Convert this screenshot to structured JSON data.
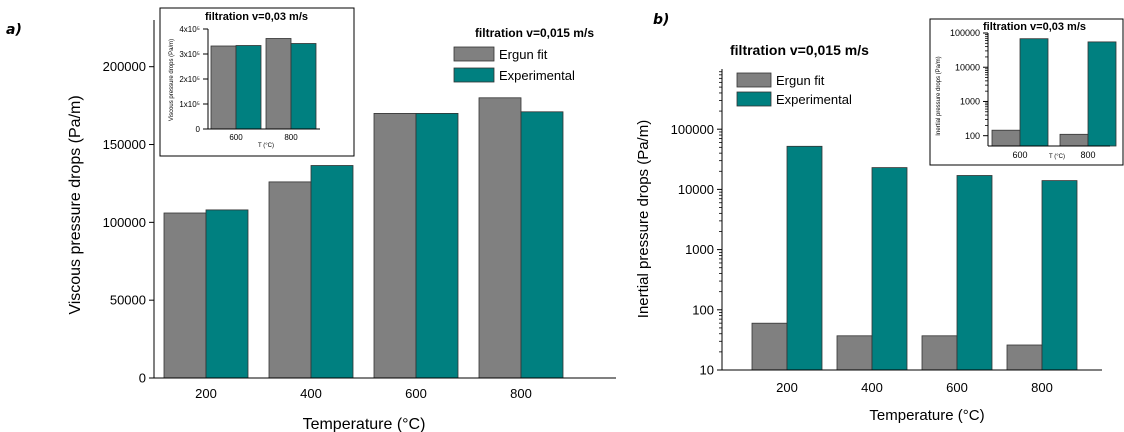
{
  "panel_labels": {
    "a": "a)",
    "b": "b)"
  },
  "colors": {
    "ergun": "#808080",
    "experimental": "#008080",
    "axis": "#000000"
  },
  "chart_data": [
    {
      "id": "main-a",
      "type": "bar",
      "scale": "linear",
      "title": "filtration v=0,015 m/s",
      "xlabel": "Temperature (°C)",
      "ylabel": "Viscous pressure drops (Pa/m)",
      "categories": [
        "200",
        "400",
        "600",
        "800"
      ],
      "ylim": [
        0,
        230000
      ],
      "yticks": [
        0,
        50000,
        100000,
        150000,
        200000
      ],
      "ytick_labels": [
        "0",
        "50000",
        "100000",
        "150000",
        "200000"
      ],
      "legend_position": "top-right",
      "series": [
        {
          "name": "Ergun fit",
          "values": [
            106000,
            126000,
            170000,
            180000
          ]
        },
        {
          "name": "Experimental",
          "values": [
            108000,
            136500,
            170000,
            171000
          ]
        }
      ]
    },
    {
      "id": "inset-a",
      "type": "bar",
      "scale": "linear",
      "title": "filtration v=0,03 m/s",
      "xlabel": "T (°C)",
      "ylabel": "Viscous pressure drops (Pa/m)",
      "categories": [
        "600",
        "800"
      ],
      "ylim": [
        0,
        400000
      ],
      "yticks": [
        0,
        100000,
        200000,
        300000,
        400000
      ],
      "ytick_labels": [
        "0",
        "1x10⁵",
        "2x10⁵",
        "3x10⁵",
        "4x10⁵"
      ],
      "series": [
        {
          "name": "Ergun fit",
          "values": [
            332000,
            362000
          ]
        },
        {
          "name": "Experimental",
          "values": [
            334000,
            342000
          ]
        }
      ]
    },
    {
      "id": "main-b",
      "type": "bar",
      "scale": "log",
      "title": "filtration v=0,015 m/s",
      "xlabel": "Temperature (°C)",
      "ylabel": "Inertial pressure drops (Pa/m)",
      "categories": [
        "200",
        "400",
        "600",
        "800"
      ],
      "ylim": [
        10,
        1000000
      ],
      "yticks": [
        10,
        100,
        1000,
        10000,
        100000
      ],
      "ytick_labels": [
        "10",
        "100",
        "1000",
        "10000",
        "100000"
      ],
      "legend_position": "top-left",
      "series": [
        {
          "name": "Ergun fit",
          "values": [
            60,
            37,
            37,
            26
          ]
        },
        {
          "name": "Experimental",
          "values": [
            52000,
            23000,
            17000,
            14000
          ]
        }
      ]
    },
    {
      "id": "inset-b",
      "type": "bar",
      "scale": "log",
      "title": "filtration v=0,03 m/s",
      "xlabel": "T (°C)",
      "ylabel": "Inertial pressure drops (Pa/m)",
      "categories": [
        "600",
        "800"
      ],
      "ylim": [
        50,
        100000
      ],
      "yticks": [
        100,
        1000,
        10000,
        100000
      ],
      "ytick_labels": [
        "100",
        "1000",
        "10000",
        "100000"
      ],
      "series": [
        {
          "name": "Ergun fit",
          "values": [
            145,
            110
          ]
        },
        {
          "name": "Experimental",
          "values": [
            68000,
            55000
          ]
        }
      ]
    }
  ]
}
